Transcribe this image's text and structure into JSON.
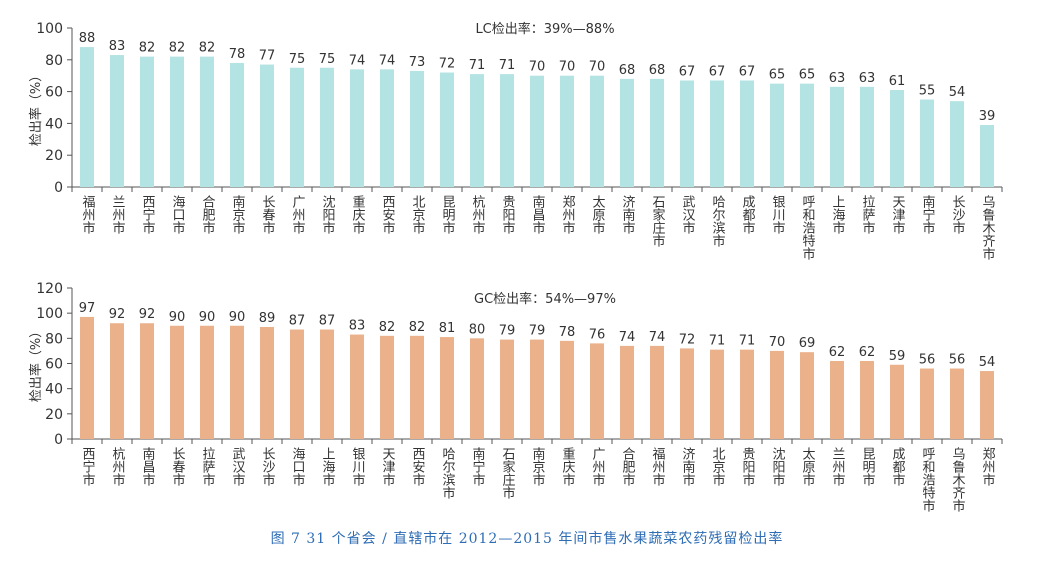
{
  "caption": "图 7   31 个省会 / 直辖市在 2012—2015 年间市售水果蔬菜农药残留检出率",
  "chart_data": [
    {
      "type": "bar",
      "title": "LC检出率：39%—88%",
      "ylabel": "检出率（%）",
      "xlabel": "",
      "ylim": [
        0,
        100
      ],
      "yticks": [
        0,
        20,
        40,
        60,
        80,
        100
      ],
      "color": "#b3e3e2",
      "grid": false,
      "categories": [
        "福州市",
        "兰州市",
        "西宁市",
        "海口市",
        "合肥市",
        "南京市",
        "长春市",
        "广州市",
        "沈阳市",
        "重庆市",
        "西安市",
        "北京市",
        "昆明市",
        "杭州市",
        "贵阳市",
        "南昌市",
        "郑州市",
        "太原市",
        "济南市",
        "石家庄市",
        "武汉市",
        "哈尔滨市",
        "成都市",
        "银川市",
        "呼和浩特市",
        "上海市",
        "拉萨市",
        "天津市",
        "南宁市",
        "长沙市",
        "乌鲁木齐市"
      ],
      "values": [
        88,
        83,
        82,
        82,
        82,
        78,
        77,
        75,
        75,
        74,
        74,
        73,
        72,
        71,
        71,
        70,
        70,
        70,
        68,
        68,
        67,
        67,
        67,
        65,
        65,
        63,
        63,
        61,
        55,
        54,
        39
      ]
    },
    {
      "type": "bar",
      "title": "GC检出率：54%—97%",
      "ylabel": "检出率（%）",
      "xlabel": "",
      "ylim": [
        0,
        120
      ],
      "yticks": [
        0,
        20,
        40,
        60,
        80,
        100,
        120
      ],
      "color": "#eab18a",
      "grid": false,
      "categories": [
        "西宁市",
        "杭州市",
        "南昌市",
        "长春市",
        "拉萨市",
        "武汉市",
        "长沙市",
        "海口市",
        "上海市",
        "银川市",
        "天津市",
        "西安市",
        "哈尔滨市",
        "南宁市",
        "石家庄市",
        "南京市",
        "重庆市",
        "广州市",
        "合肥市",
        "福州市",
        "济南市",
        "北京市",
        "贵阳市",
        "沈阳市",
        "太原市",
        "兰州市",
        "昆明市",
        "成都市",
        "呼和浩特市",
        "乌鲁木齐市",
        "郑州市"
      ],
      "values": [
        97,
        92,
        92,
        90,
        90,
        90,
        89,
        87,
        87,
        83,
        82,
        82,
        81,
        80,
        79,
        79,
        78,
        76,
        74,
        74,
        72,
        71,
        71,
        70,
        69,
        62,
        62,
        59,
        56,
        56,
        54
      ]
    }
  ]
}
